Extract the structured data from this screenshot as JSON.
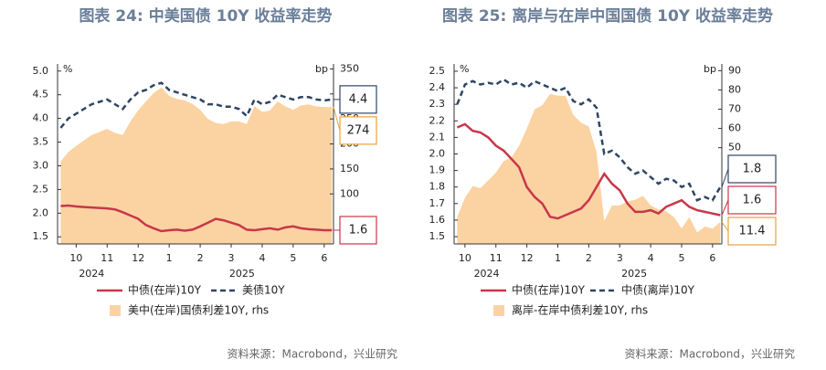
{
  "chart_data": [
    {
      "type": "line",
      "title": "图表 24: 中美国债 10Y 收益率走势",
      "ylabel": "%",
      "y2label": "bp",
      "x": [
        0,
        0.25,
        0.5,
        0.75,
        1,
        1.25,
        1.5,
        1.75,
        2,
        2.25,
        2.5,
        2.75,
        3,
        3.25,
        3.5,
        3.75,
        4,
        4.25,
        4.5,
        4.75,
        5,
        5.25,
        5.5,
        5.75,
        6,
        6.25,
        6.5,
        6.75,
        7,
        7.25,
        7.5,
        7.75,
        8,
        8.25,
        8.5,
        8.75
      ],
      "xlim": [
        -0.1,
        8.8
      ],
      "xticks": [
        {
          "value": 0.5,
          "label": "10"
        },
        {
          "value": 1.5,
          "label": "11"
        },
        {
          "value": 2.5,
          "label": "12"
        },
        {
          "value": 3.5,
          "label": "1"
        },
        {
          "value": 4.5,
          "label": "2"
        },
        {
          "value": 5.5,
          "label": "3"
        },
        {
          "value": 6.5,
          "label": "4"
        },
        {
          "value": 7.5,
          "label": "5"
        },
        {
          "value": 8.5,
          "label": "6"
        }
      ],
      "years": [
        {
          "value": 1.0,
          "label": "2024"
        },
        {
          "value": 5.85,
          "label": "2025"
        }
      ],
      "ylim": [
        1.35,
        5.15
      ],
      "yticks": [
        1.5,
        {
          "value": 2,
          "label": "2.0"
        },
        2.5,
        {
          "value": 3,
          "label": "3.0"
        },
        3.5,
        {
          "value": 4,
          "label": "4.0"
        },
        4.5,
        {
          "value": 5,
          "label": "5.0"
        }
      ],
      "y2lim": [
        0,
        360
      ],
      "y2ticks": [
        100,
        150,
        200,
        250,
        300,
        350
      ],
      "grid": false,
      "series": [
        {
          "name": "美中(在岸)国债利差10Y, rhs",
          "color": "#fbd3a2",
          "axis": "y2",
          "kind": "area",
          "last_label": 274,
          "values": [
            165,
            184,
            196,
            207,
            218,
            224,
            230,
            222,
            218,
            245,
            267,
            285,
            302,
            313,
            296,
            290,
            287,
            280,
            268,
            250,
            242,
            240,
            245,
            245,
            240,
            276,
            264,
            267,
            285,
            275,
            268,
            277,
            279,
            275,
            274,
            274
          ]
        },
        {
          "name": "中债(在岸)10Y",
          "color": "#c8374a",
          "kind": "solid",
          "last_label": 1.6,
          "values": [
            2.15,
            2.16,
            2.14,
            2.13,
            2.12,
            2.11,
            2.1,
            2.08,
            2.02,
            1.95,
            1.88,
            1.75,
            1.68,
            1.62,
            1.64,
            1.65,
            1.63,
            1.65,
            1.72,
            1.8,
            1.88,
            1.85,
            1.8,
            1.75,
            1.65,
            1.64,
            1.66,
            1.68,
            1.65,
            1.7,
            1.72,
            1.68,
            1.66,
            1.65,
            1.64,
            1.64
          ]
        },
        {
          "name": "美债10Y",
          "color": "#2f4563",
          "kind": "dashed",
          "last_label": 4.4,
          "values": [
            3.8,
            4.0,
            4.1,
            4.2,
            4.3,
            4.35,
            4.4,
            4.3,
            4.2,
            4.4,
            4.55,
            4.6,
            4.7,
            4.75,
            4.6,
            4.55,
            4.5,
            4.45,
            4.4,
            4.3,
            4.3,
            4.25,
            4.25,
            4.2,
            4.05,
            4.4,
            4.3,
            4.35,
            4.5,
            4.45,
            4.4,
            4.45,
            4.45,
            4.4,
            4.38,
            4.4
          ]
        }
      ],
      "source": "资料来源：Macrobond，兴业研究"
    },
    {
      "type": "line",
      "title": "图表 25: 离岸与在岸中国国债 10Y 收益率走势",
      "ylabel": "%",
      "y2label": "bp",
      "x": [
        0.25,
        0.5,
        0.75,
        1,
        1.25,
        1.5,
        1.75,
        2,
        2.25,
        2.5,
        2.75,
        3,
        3.25,
        3.5,
        3.75,
        4,
        4.25,
        4.5,
        4.75,
        5,
        5.25,
        5.5,
        5.75,
        6,
        6.25,
        6.5,
        6.75,
        7,
        7.25,
        7.5,
        7.75,
        8,
        8.25,
        8.5,
        8.75
      ],
      "xlim": [
        0.15,
        8.8
      ],
      "xticks": [
        {
          "value": 0.5,
          "label": "10"
        },
        {
          "value": 1.5,
          "label": "11"
        },
        {
          "value": 2.5,
          "label": "12"
        },
        {
          "value": 3.5,
          "label": "1"
        },
        {
          "value": 4.5,
          "label": "2"
        },
        {
          "value": 5.5,
          "label": "3"
        },
        {
          "value": 6.5,
          "label": "4"
        },
        {
          "value": 7.5,
          "label": "5"
        },
        {
          "value": 8.5,
          "label": "6"
        }
      ],
      "years": [
        {
          "value": 1.2,
          "label": "2024"
        },
        {
          "value": 5.97,
          "label": "2025"
        }
      ],
      "ylim": [
        1.456,
        2.544
      ],
      "yticks": [
        1.5,
        1.6,
        1.7,
        1.8,
        1.9,
        {
          "value": 2,
          "label": "2.0"
        },
        2.1,
        2.2,
        2.3,
        2.4,
        2.5
      ],
      "y2lim": [
        0,
        93.5
      ],
      "y2ticks": [
        50,
        60,
        70,
        80,
        90
      ],
      "grid": false,
      "series": [
        {
          "name": "离岸-在岸中债利差10Y, rhs",
          "color": "#fbd3a2",
          "axis": "y2",
          "kind": "area",
          "last_label": 11.4,
          "values": [
            14,
            24,
            30,
            29,
            33,
            37,
            43,
            45,
            51,
            60,
            70,
            72,
            78,
            77,
            77,
            67,
            63,
            61,
            48,
            12,
            20,
            20,
            22,
            23,
            25,
            20,
            18,
            17,
            14,
            8,
            14,
            6,
            9,
            8,
            11.4
          ]
        },
        {
          "name": "中债(在岸)10Y",
          "color": "#c8374a",
          "kind": "solid",
          "last_label": 1.6,
          "values": [
            2.16,
            2.18,
            2.14,
            2.13,
            2.1,
            2.05,
            2.02,
            1.97,
            1.92,
            1.8,
            1.74,
            1.7,
            1.62,
            1.61,
            1.63,
            1.65,
            1.67,
            1.72,
            1.8,
            1.88,
            1.82,
            1.78,
            1.7,
            1.65,
            1.65,
            1.66,
            1.64,
            1.68,
            1.7,
            1.72,
            1.68,
            1.66,
            1.65,
            1.64,
            1.63
          ]
        },
        {
          "name": "中债(离岸)10Y",
          "color": "#2f4563",
          "kind": "dashed",
          "last_label": 1.8,
          "values": [
            2.3,
            2.42,
            2.44,
            2.42,
            2.43,
            2.42,
            2.45,
            2.42,
            2.43,
            2.4,
            2.44,
            2.42,
            2.4,
            2.38,
            2.4,
            2.32,
            2.3,
            2.33,
            2.28,
            2.0,
            2.02,
            1.98,
            1.92,
            1.88,
            1.9,
            1.86,
            1.82,
            1.85,
            1.84,
            1.8,
            1.82,
            1.72,
            1.74,
            1.72,
            1.8
          ]
        }
      ],
      "source": "资料来源：Macrobond，兴业研究"
    }
  ]
}
